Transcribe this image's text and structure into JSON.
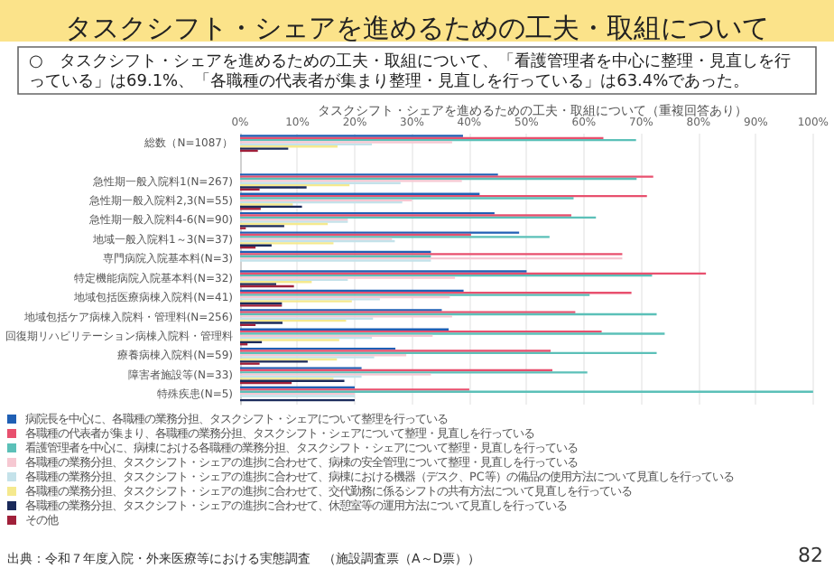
{
  "chart_data": {
    "type": "bar",
    "orientation": "horizontal",
    "title": "タスクシフト・シェアを進めるための工夫・取組について",
    "subtitle": "○　タスクシフト・シェアを進めるための工夫・取組について、「看護管理者を中心に整理・見直しを行っている」は69.1%、「各職種の代表者が集まり整理・見直しを行っている」は63.4%であった。",
    "xlabel": "タスクシフト・シェアを進めるための工夫・取組について（重複回答あり）",
    "annotations": [
      "出典：令和７年度入院・外来医療等における実態調査　（施設調査票（A～D票））",
      "82"
    ],
    "categories": [
      "総数（N=1087）",
      null,
      "急性期一般入院料1(N=267)",
      "急性期一般入院料2,3(N=55)",
      "急性期一般入院料4-6(N=90)",
      "地域一般入院料1～3(N=37)",
      "専門病院入院基本料(N=3)",
      "特定機能病院入院基本料(N=32)",
      "地域包括医療病棟入院料(N=41)",
      "地域包括ケア病棟入院料・管理料(N=256)",
      "回復期リハビリテーション病棟入院料・管理料",
      "療養病棟入院料(N=59)",
      "障害者施設等(N=33)",
      "特殊疾患(N=5)"
    ],
    "series": [
      {
        "name": "病院長を中心に、各職種の業務分担、タスクシフト・シェアについて整理を行っている",
        "color": "#1f5fb4",
        "values": [
          38.9,
          null,
          45,
          41.8,
          44.4,
          48.7,
          33.3,
          50,
          39,
          35.2,
          36.4,
          27.1,
          21.2,
          20
        ]
      },
      {
        "name": "各職種の代表者が集まり、各職種の業務分担、タスクシフト・シェアについて整理・見直しを行っている",
        "color": "#e8506e",
        "values": [
          63.4,
          null,
          72.1,
          71,
          57.8,
          40.3,
          66.7,
          81.3,
          68.3,
          58.5,
          63.1,
          54.2,
          54.5,
          40
        ]
      },
      {
        "name": "看護管理者を中心に、病棟における各職種の業務分担、タスクシフト・シェアについて整理・見直しを行っている",
        "color": "#5bc0b8",
        "values": [
          69.1,
          null,
          69.2,
          58.2,
          62.1,
          54,
          33.3,
          71.9,
          61,
          72.7,
          74.1,
          72.7,
          60.6,
          100
        ]
      },
      {
        "name": "各職種の業務分担、タスクシフト・シェアの進捗に合わせて、病棟の安全管理について整理・見直しを行っている",
        "color": "#f6c8d2",
        "values": [
          37,
          null,
          38.7,
          30,
          18.8,
          26.5,
          66.7,
          37.5,
          36.6,
          37,
          33.6,
          29,
          33.3,
          20
        ]
      },
      {
        "name": "各職種の業務分担、タスクシフト・シェアの進捗に合わせて、病棟における機器（デスク、PC等）の備品の使用方法について見直しを行っている",
        "color": "#c4e2ea",
        "values": [
          23,
          null,
          28,
          28.3,
          18.8,
          27,
          33.3,
          18.8,
          24.4,
          23.2,
          23,
          23.4,
          21.2,
          20
        ]
      },
      {
        "name": "各職種の業務分担、タスクシフト・シェアの進捗に合わせて、交代勤務に係るシフトの共有方法について見直しを行っている",
        "color": "#f5e98e",
        "values": [
          17,
          null,
          19.1,
          9.2,
          15.3,
          16.3,
          0,
          12.5,
          19.5,
          18.5,
          17.3,
          16.9,
          16.3,
          0
        ]
      },
      {
        "name": "各職種の業務分担、タスクシフト・シェアの進捗に合わせて、休憩室等の運用方法について見直しを行っている",
        "color": "#1a2a5a",
        "values": [
          8.4,
          null,
          11.6,
          10.8,
          7.7,
          5.5,
          0,
          6.3,
          7.3,
          7.4,
          3.8,
          11.8,
          18.2,
          20
        ]
      },
      {
        "name": "その他",
        "color": "#a0203a",
        "values": [
          3.1,
          null,
          3.4,
          3.6,
          1,
          2.7,
          0,
          9.4,
          7.3,
          2.7,
          1.3,
          3.4,
          9,
          0
        ]
      }
    ],
    "xlim": [
      0,
      100
    ],
    "xticks": [
      {
        "value": 0,
        "label": "0%"
      },
      {
        "value": 10,
        "label": "10%"
      },
      {
        "value": 20,
        "label": "20%"
      },
      {
        "value": 30,
        "label": "30%"
      },
      {
        "value": 40,
        "label": "40%"
      },
      {
        "value": 50,
        "label": "50%"
      },
      {
        "value": 60,
        "label": "60%"
      },
      {
        "value": 70,
        "label": "70%"
      },
      {
        "value": 80,
        "label": "80%"
      },
      {
        "value": 90,
        "label": "90%"
      },
      {
        "value": 100,
        "label": "100%"
      }
    ],
    "grid": "x",
    "legend": "bottom"
  }
}
